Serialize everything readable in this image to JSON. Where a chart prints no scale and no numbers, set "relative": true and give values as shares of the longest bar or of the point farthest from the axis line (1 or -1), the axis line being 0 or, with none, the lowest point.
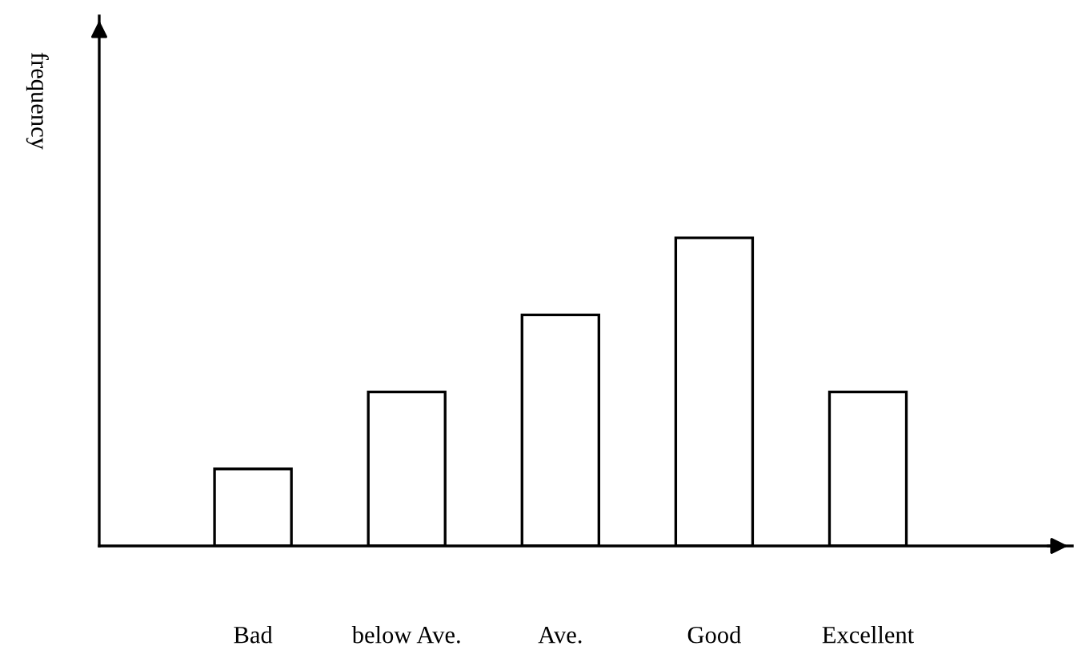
{
  "chart_data": {
    "type": "bar",
    "ylabel": "frequency",
    "categories": [
      "Bad",
      "below Ave.",
      "Ave.",
      "Good",
      "Excellent"
    ],
    "values": [
      0.25,
      0.5,
      0.75,
      1,
      0.5
    ],
    "color": "#ffffff",
    "relative": true
  }
}
